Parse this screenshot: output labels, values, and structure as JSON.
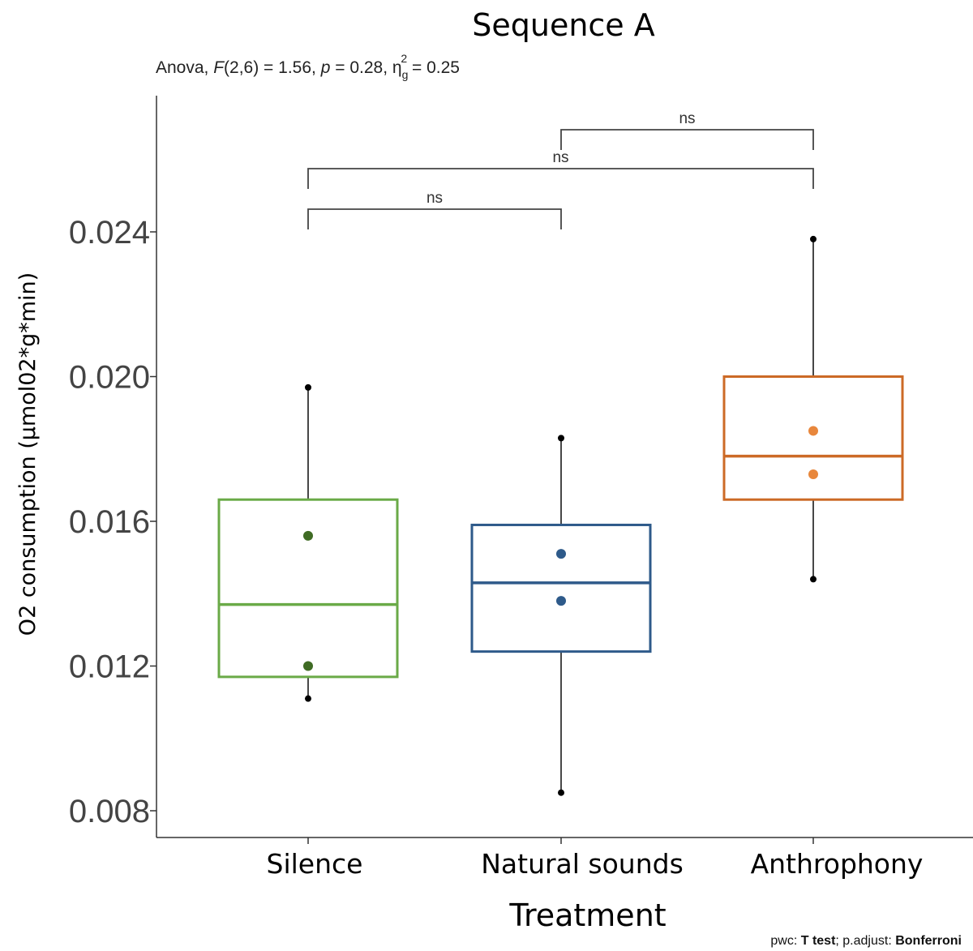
{
  "chart_data": {
    "type": "box",
    "title": "Sequence A",
    "subtitle": {
      "prefix": "Anova, ",
      "F": "F",
      "F_args": "(2,6) = 1.56, ",
      "p": "p",
      "p_value": " = 0.28, ",
      "eta": "η",
      "eta_sub": "g",
      "eta_sup": "2",
      "eta_value": " = 0.25"
    },
    "xlabel": "Treatment",
    "ylabel": "O2 consumption (µmol02*g*min)",
    "ylim": [
      0.0067,
      0.0265
    ],
    "yticks": [
      {
        "value": 0.008,
        "label": "0.008"
      },
      {
        "value": 0.012,
        "label": "0.012"
      },
      {
        "value": 0.016,
        "label": "0.016"
      },
      {
        "value": 0.02,
        "label": "0.020"
      },
      {
        "value": 0.024,
        "label": "0.024"
      }
    ],
    "grid": false,
    "legend": "none",
    "categories": [
      "Silence",
      "Natural sounds",
      "Anthrophony"
    ],
    "boxes": [
      {
        "category": "Silence",
        "color": "#6aaa47",
        "point_color": "#3f6b24",
        "min": 0.0111,
        "q1": 0.0117,
        "median": 0.0137,
        "q3": 0.0166,
        "max": 0.0197,
        "points": [
          0.0156,
          0.012
        ],
        "outliers": [
          0.0111
        ]
      },
      {
        "category": "Natural sounds",
        "color": "#2e5a8a",
        "point_color": "#2e5a8a",
        "min": 0.0085,
        "q1": 0.0124,
        "median": 0.0143,
        "q3": 0.0159,
        "max": 0.0183,
        "points": [
          0.0151,
          0.0138
        ],
        "outliers": []
      },
      {
        "category": "Anthrophony",
        "color": "#cc6a26",
        "point_color": "#e8873c",
        "min": 0.0144,
        "q1": 0.0166,
        "median": 0.0178,
        "q3": 0.02,
        "max": 0.0238,
        "points": [
          0.0185,
          0.0173
        ],
        "outliers": []
      }
    ],
    "comparisons": [
      {
        "from": 0,
        "to": 1,
        "label": "ns",
        "y": 0.0248
      },
      {
        "from": 0,
        "to": 2,
        "label": "ns",
        "y": 0.0259
      },
      {
        "from": 1,
        "to": 2,
        "label": "ns",
        "y": 0.027
      }
    ],
    "caption": {
      "parts": [
        {
          "text": "pwc: ",
          "bold": false
        },
        {
          "text": "T test",
          "bold": true
        },
        {
          "text": "; p.adjust: ",
          "bold": false
        },
        {
          "text": "Bonferroni",
          "bold": true
        }
      ]
    }
  }
}
